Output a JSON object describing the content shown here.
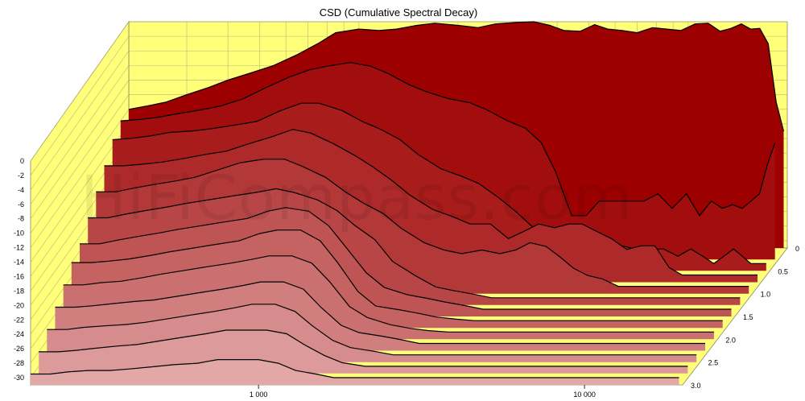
{
  "chart_data": {
    "type": "area",
    "title": "CSD (Cumulative Spectral Decay)",
    "watermark": "HiFiCompass.com",
    "xlabel": "",
    "ylabel": "",
    "zlabel": "",
    "x_scale": "log",
    "x_tick_labels": [
      "1 000",
      "10 000"
    ],
    "y_ticks": [
      0,
      -2,
      -4,
      -6,
      -8,
      -10,
      -12,
      -14,
      -16,
      -18,
      -20,
      -22,
      -24,
      -26,
      -28,
      -30
    ],
    "z_ticks": [
      "0",
      "0.5",
      "1.0",
      "1.5",
      "2.0",
      "2.5",
      "3.0"
    ],
    "ylim": [
      -31,
      0
    ],
    "xlim": [
      200,
      20000
    ],
    "grid": true,
    "colors": {
      "wall": "#ffff7a",
      "floor": "#ffff7a",
      "grid": "#b8b878",
      "front": "#9c0000",
      "back": "#e2a8a8",
      "outline": "#000000"
    },
    "x": [
      200,
      230,
      260,
      300,
      350,
      400,
      470,
      550,
      650,
      750,
      850,
      1000,
      1150,
      1300,
      1500,
      1700,
      2000,
      2300,
      2600,
      3000,
      3400,
      3800,
      4200,
      4700,
      5200,
      5700,
      6300,
      7000,
      7800,
      8600,
      9500,
      10500,
      11500,
      12500,
      13500,
      14500,
      15500,
      16500,
      17500,
      18500,
      19500
    ],
    "series": [
      {
        "time_ms": 0.0,
        "values": [
          -12.0,
          -11.5,
          -11.0,
          -10.0,
          -9.0,
          -8.0,
          -7.0,
          -6.0,
          -4.5,
          -3.0,
          -1.5,
          -1.0,
          -1.2,
          -1.0,
          -0.5,
          -0.2,
          -0.5,
          -0.8,
          -0.3,
          -0.1,
          0.0,
          -0.5,
          -1.2,
          -1.3,
          -0.4,
          -1.0,
          -1.2,
          -1.5,
          -0.8,
          -1.0,
          -1.2,
          -0.3,
          -0.2,
          -1.3,
          -0.9,
          -0.3,
          -1.0,
          -0.9,
          -3.0,
          -11.0,
          -15.0
        ]
      },
      {
        "time_ms": 0.25,
        "values": [
          -12.0,
          -11.8,
          -11.5,
          -11.0,
          -10.5,
          -10.0,
          -9.0,
          -7.5,
          -6.0,
          -5.0,
          -4.5,
          -4.0,
          -4.5,
          -5.5,
          -7.0,
          -8.0,
          -9.0,
          -9.5,
          -10.5,
          -12.0,
          -13.0,
          -15.0,
          -19.0,
          -25.0,
          -25.0,
          -23.0,
          -23.0,
          -23.0,
          -23.0,
          -22.0,
          -24.0,
          -22.0,
          -25.0,
          -23.0,
          -24.0,
          -23.5,
          -24.0,
          -23.0,
          -22.0,
          -18.0,
          -15.0
        ]
      },
      {
        "time_ms": 0.5,
        "values": [
          -13.0,
          -12.8,
          -12.5,
          -12.0,
          -11.8,
          -11.5,
          -11.0,
          -10.5,
          -9.0,
          -8.0,
          -8.0,
          -9.0,
          -10.5,
          -11.5,
          -13.0,
          -15.0,
          -17.0,
          -18.0,
          -19.0,
          -21.0,
          -23.0,
          -25.0,
          -26.0,
          -27.5,
          -27.0,
          -27.0,
          -28.0,
          -27.5,
          -28.0,
          -28.0,
          -28.0,
          -29.0,
          -28.0,
          -29.0,
          -30.0,
          -29.0,
          -28.0,
          -29.0,
          -30.0,
          -30.0,
          -30.0
        ]
      },
      {
        "time_ms": 0.75,
        "values": [
          -15.0,
          -15.0,
          -14.8,
          -14.5,
          -14.0,
          -13.5,
          -13.0,
          -12.0,
          -11.0,
          -10.0,
          -10.5,
          -12.0,
          -13.5,
          -15.0,
          -17.0,
          -19.0,
          -21.0,
          -22.0,
          -23.0,
          -23.0,
          -25.0,
          -24.0,
          -23.0,
          -23.5,
          -23.0,
          -23.0,
          -24.0,
          -25.0,
          -26.5,
          -26.0,
          -26.0,
          -29.0,
          -30.0,
          -30.0,
          -30.0,
          -30.0,
          -30.0,
          -30.0,
          -30.0,
          -30.0,
          -30.0
        ]
      },
      {
        "time_ms": 1.0,
        "values": [
          -17.0,
          -17.0,
          -16.5,
          -16.0,
          -15.5,
          -15.0,
          -14.0,
          -13.0,
          -12.5,
          -12.5,
          -13.5,
          -15.0,
          -17.0,
          -18.5,
          -20.0,
          -22.0,
          -24.0,
          -25.0,
          -25.5,
          -25.0,
          -25.5,
          -25.0,
          -24.0,
          -24.5,
          -26.0,
          -27.5,
          -28.5,
          -29.0,
          -30.0,
          -30.0,
          -30.0,
          -30.0,
          -30.0,
          -30.0,
          -30.0,
          -30.0,
          -30.0,
          -30.0,
          -30.0,
          -30.0,
          -30.0
        ]
      },
      {
        "time_ms": 1.25,
        "values": [
          -19.0,
          -19.0,
          -18.5,
          -18.0,
          -17.5,
          -17.0,
          -16.5,
          -16.0,
          -15.5,
          -15.0,
          -15.5,
          -16.5,
          -18.0,
          -20.0,
          -22.0,
          -25.0,
          -27.0,
          -28.5,
          -29.0,
          -29.5,
          -30.0,
          -30.0,
          -30.0,
          -30.0,
          -30.0,
          -30.0,
          -30.0,
          -30.0,
          -30.0,
          -30.0,
          -30.0,
          -30.0,
          -30.0,
          -30.0,
          -30.0,
          -30.0,
          -30.0,
          -30.0,
          -30.0,
          -30.0,
          -30.0
        ]
      },
      {
        "time_ms": 1.5,
        "values": [
          -21.0,
          -21.0,
          -20.5,
          -20.0,
          -19.5,
          -19.0,
          -18.5,
          -18.0,
          -17.5,
          -16.5,
          -16.0,
          -16.5,
          -18.5,
          -21.5,
          -25.0,
          -27.0,
          -28.0,
          -28.5,
          -29.0,
          -29.5,
          -30.0,
          -30.0,
          -30.0,
          -30.0,
          -30.0,
          -30.0,
          -30.0,
          -30.0,
          -30.0,
          -30.0,
          -30.0,
          -30.0,
          -30.0,
          -30.0,
          -30.0,
          -30.0,
          -30.0,
          -30.0,
          -30.0,
          -30.0,
          -30.0
        ]
      },
      {
        "time_ms": 1.75,
        "values": [
          -22.0,
          -22.0,
          -21.8,
          -21.5,
          -21.0,
          -20.5,
          -20.0,
          -19.5,
          -19.0,
          -18.0,
          -17.5,
          -17.5,
          -19.0,
          -22.0,
          -26.0,
          -28.0,
          -28.5,
          -29.0,
          -29.5,
          -29.8,
          -30.0,
          -30.0,
          -30.0,
          -30.0,
          -30.0,
          -30.0,
          -30.0,
          -30.0,
          -30.0,
          -30.0,
          -30.0,
          -30.0,
          -30.0,
          -30.0,
          -30.0,
          -30.0,
          -30.0,
          -30.0,
          -30.0,
          -30.0,
          -30.0
        ]
      },
      {
        "time_ms": 2.0,
        "values": [
          -23.5,
          -23.5,
          -23.2,
          -23.0,
          -22.5,
          -22.0,
          -21.5,
          -21.0,
          -20.5,
          -20.0,
          -19.5,
          -19.5,
          -20.5,
          -23.0,
          -26.5,
          -28.0,
          -29.0,
          -29.5,
          -29.8,
          -30.0,
          -30.0,
          -30.0,
          -30.0,
          -30.0,
          -30.0,
          -30.0,
          -30.0,
          -30.0,
          -30.0,
          -30.0,
          -30.0,
          -30.0,
          -30.0,
          -30.0,
          -30.0,
          -30.0,
          -30.0,
          -30.0,
          -30.0,
          -30.0,
          -30.0
        ]
      },
      {
        "time_ms": 2.25,
        "values": [
          -25.0,
          -25.0,
          -24.8,
          -24.5,
          -24.2,
          -24.0,
          -23.5,
          -23.0,
          -22.5,
          -22.0,
          -21.5,
          -21.5,
          -22.5,
          -25.0,
          -27.5,
          -28.5,
          -29.0,
          -29.5,
          -30.0,
          -30.0,
          -30.0,
          -30.0,
          -30.0,
          -30.0,
          -30.0,
          -30.0,
          -30.0,
          -30.0,
          -30.0,
          -30.0,
          -30.0,
          -30.0,
          -30.0,
          -30.0,
          -30.0,
          -30.0,
          -30.0,
          -30.0,
          -30.0,
          -30.0,
          -30.0
        ]
      },
      {
        "time_ms": 2.5,
        "values": [
          -26.5,
          -26.5,
          -26.2,
          -26.0,
          -25.8,
          -25.5,
          -25.0,
          -24.5,
          -24.0,
          -23.5,
          -23.0,
          -23.0,
          -24.0,
          -26.0,
          -28.0,
          -29.0,
          -29.5,
          -30.0,
          -30.0,
          -30.0,
          -30.0,
          -30.0,
          -30.0,
          -30.0,
          -30.0,
          -30.0,
          -30.0,
          -30.0,
          -30.0,
          -30.0,
          -30.0,
          -30.0,
          -30.0,
          -30.0,
          -30.0,
          -30.0,
          -30.0,
          -30.0,
          -30.0,
          -30.0,
          -30.0
        ]
      },
      {
        "time_ms": 2.75,
        "values": [
          -28.0,
          -28.0,
          -27.8,
          -27.5,
          -27.2,
          -27.0,
          -26.5,
          -26.0,
          -25.5,
          -25.0,
          -25.0,
          -25.0,
          -25.5,
          -27.0,
          -28.5,
          -29.5,
          -30.0,
          -30.0,
          -30.0,
          -30.0,
          -30.0,
          -30.0,
          -30.0,
          -30.0,
          -30.0,
          -30.0,
          -30.0,
          -30.0,
          -30.0,
          -30.0,
          -30.0,
          -30.0,
          -30.0,
          -30.0,
          -30.0,
          -30.0,
          -30.0,
          -30.0,
          -30.0,
          -30.0,
          -30.0
        ]
      },
      {
        "time_ms": 3.0,
        "values": [
          -29.5,
          -29.5,
          -29.2,
          -29.0,
          -29.0,
          -28.8,
          -28.5,
          -28.2,
          -28.0,
          -27.5,
          -27.5,
          -27.5,
          -28.0,
          -29.0,
          -29.5,
          -30.0,
          -30.0,
          -30.0,
          -30.0,
          -30.0,
          -30.0,
          -30.0,
          -30.0,
          -30.0,
          -30.0,
          -30.0,
          -30.0,
          -30.0,
          -30.0,
          -30.0,
          -30.0,
          -30.0,
          -30.0,
          -30.0,
          -30.0,
          -30.0,
          -30.0,
          -30.0,
          -30.0,
          -30.0,
          -30.0
        ]
      }
    ]
  }
}
